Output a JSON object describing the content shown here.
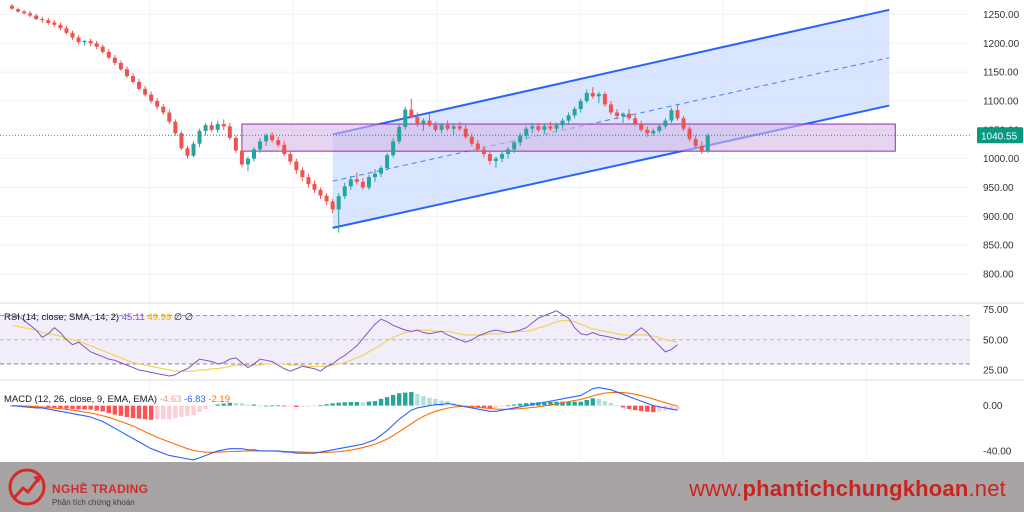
{
  "chart_data": {
    "type": "candlestick",
    "price_axis": {
      "ticks": [
        1250,
        1200,
        1150,
        1100,
        1050,
        1000,
        950,
        900,
        850,
        800
      ],
      "range": [
        755,
        1275
      ]
    },
    "last_price": {
      "value": 1040.55,
      "label": "1040.55"
    },
    "candles": [
      [
        1265,
        1268,
        1258,
        1260
      ],
      [
        1259,
        1262,
        1253,
        1255
      ],
      [
        1255,
        1258,
        1250,
        1252
      ],
      [
        1252,
        1256,
        1245,
        1248
      ],
      [
        1248,
        1251,
        1240,
        1242
      ],
      [
        1242,
        1246,
        1236,
        1240
      ],
      [
        1240,
        1244,
        1232,
        1235
      ],
      [
        1236,
        1240,
        1228,
        1232
      ],
      [
        1232,
        1236,
        1222,
        1226
      ],
      [
        1226,
        1230,
        1215,
        1218
      ],
      [
        1218,
        1222,
        1206,
        1210
      ],
      [
        1210,
        1214,
        1198,
        1202
      ],
      [
        1202,
        1206,
        1196,
        1204
      ],
      [
        1204,
        1208,
        1195,
        1200
      ],
      [
        1200,
        1204,
        1190,
        1194
      ],
      [
        1194,
        1198,
        1182,
        1185
      ],
      [
        1185,
        1190,
        1172,
        1175
      ],
      [
        1175,
        1180,
        1162,
        1166
      ],
      [
        1166,
        1170,
        1152,
        1155
      ],
      [
        1155,
        1160,
        1140,
        1143
      ],
      [
        1143,
        1148,
        1130,
        1133
      ],
      [
        1133,
        1138,
        1118,
        1121
      ],
      [
        1121,
        1126,
        1108,
        1111
      ],
      [
        1111,
        1116,
        1096,
        1100
      ],
      [
        1100,
        1105,
        1086,
        1090
      ],
      [
        1090,
        1095,
        1076,
        1080
      ],
      [
        1080,
        1085,
        1060,
        1064
      ],
      [
        1064,
        1068,
        1040,
        1044
      ],
      [
        1044,
        1048,
        1015,
        1018
      ],
      [
        1018,
        1022,
        1000,
        1005
      ],
      [
        1005,
        1030,
        1002,
        1026
      ],
      [
        1026,
        1052,
        1020,
        1048
      ],
      [
        1048,
        1062,
        1040,
        1058
      ],
      [
        1058,
        1064,
        1046,
        1050
      ],
      [
        1050,
        1066,
        1045,
        1060
      ],
      [
        1060,
        1068,
        1050,
        1056
      ],
      [
        1056,
        1062,
        1032,
        1036
      ],
      [
        1036,
        1040,
        1010,
        1014
      ],
      [
        1014,
        1018,
        985,
        990
      ],
      [
        990,
        1004,
        978,
        1000
      ],
      [
        1000,
        1020,
        995,
        1016
      ],
      [
        1016,
        1036,
        1010,
        1030
      ],
      [
        1030,
        1044,
        1022,
        1040
      ],
      [
        1040,
        1046,
        1028,
        1032
      ],
      [
        1032,
        1038,
        1020,
        1024
      ],
      [
        1024,
        1030,
        1004,
        1008
      ],
      [
        1008,
        1014,
        990,
        995
      ],
      [
        995,
        1000,
        974,
        980
      ],
      [
        980,
        985,
        962,
        968
      ],
      [
        968,
        974,
        950,
        956
      ],
      [
        956,
        962,
        940,
        946
      ],
      [
        946,
        950,
        930,
        936
      ],
      [
        936,
        940,
        920,
        926
      ],
      [
        926,
        930,
        906,
        912
      ],
      [
        912,
        940,
        872,
        935
      ],
      [
        935,
        958,
        930,
        952
      ],
      [
        952,
        970,
        946,
        964
      ],
      [
        964,
        976,
        955,
        960
      ],
      [
        960,
        966,
        946,
        950
      ],
      [
        950,
        972,
        946,
        968
      ],
      [
        968,
        982,
        960,
        974
      ],
      [
        974,
        988,
        968,
        984
      ],
      [
        984,
        1010,
        980,
        1006
      ],
      [
        1006,
        1036,
        1002,
        1030
      ],
      [
        1030,
        1060,
        1026,
        1055
      ],
      [
        1055,
        1090,
        1050,
        1085
      ],
      [
        1085,
        1104,
        1070,
        1072
      ],
      [
        1072,
        1080,
        1055,
        1060
      ],
      [
        1060,
        1070,
        1048,
        1066
      ],
      [
        1066,
        1078,
        1055,
        1058
      ],
      [
        1058,
        1064,
        1046,
        1050
      ],
      [
        1050,
        1062,
        1044,
        1058
      ],
      [
        1058,
        1066,
        1048,
        1052
      ],
      [
        1052,
        1060,
        1042,
        1056
      ],
      [
        1056,
        1064,
        1048,
        1052
      ],
      [
        1052,
        1058,
        1034,
        1038
      ],
      [
        1038,
        1044,
        1022,
        1026
      ],
      [
        1026,
        1032,
        1012,
        1016
      ],
      [
        1016,
        1022,
        1002,
        1008
      ],
      [
        1008,
        1014,
        990,
        996
      ],
      [
        996,
        1004,
        984,
        1000
      ],
      [
        1000,
        1012,
        994,
        1008
      ],
      [
        1008,
        1020,
        1000,
        1016
      ],
      [
        1016,
        1032,
        1010,
        1028
      ],
      [
        1028,
        1044,
        1022,
        1040
      ],
      [
        1040,
        1056,
        1034,
        1052
      ],
      [
        1052,
        1062,
        1044,
        1056
      ],
      [
        1056,
        1062,
        1046,
        1050
      ],
      [
        1050,
        1060,
        1044,
        1056
      ],
      [
        1056,
        1064,
        1048,
        1052
      ],
      [
        1052,
        1062,
        1046,
        1058
      ],
      [
        1058,
        1070,
        1052,
        1066
      ],
      [
        1066,
        1080,
        1060,
        1075
      ],
      [
        1075,
        1090,
        1070,
        1086
      ],
      [
        1086,
        1104,
        1080,
        1100
      ],
      [
        1100,
        1120,
        1096,
        1114
      ],
      [
        1114,
        1124,
        1104,
        1108
      ],
      [
        1108,
        1116,
        1096,
        1112
      ],
      [
        1112,
        1116,
        1090,
        1094
      ],
      [
        1094,
        1100,
        1076,
        1080
      ],
      [
        1080,
        1086,
        1068,
        1074
      ],
      [
        1074,
        1080,
        1062,
        1078
      ],
      [
        1078,
        1086,
        1066,
        1070
      ],
      [
        1070,
        1076,
        1056,
        1060
      ],
      [
        1060,
        1066,
        1046,
        1050
      ],
      [
        1050,
        1056,
        1038,
        1044
      ],
      [
        1044,
        1052,
        1040,
        1048
      ],
      [
        1048,
        1060,
        1044,
        1056
      ],
      [
        1056,
        1070,
        1052,
        1066
      ],
      [
        1066,
        1088,
        1062,
        1084
      ],
      [
        1084,
        1094,
        1066,
        1070
      ],
      [
        1070,
        1074,
        1048,
        1052
      ],
      [
        1052,
        1056,
        1030,
        1034
      ],
      [
        1034,
        1040,
        1018,
        1022
      ],
      [
        1022,
        1030,
        1008,
        1014
      ],
      [
        1014,
        1044,
        1010,
        1040
      ]
    ],
    "channel": {
      "upper": [
        [
          53,
          1042
        ],
        [
          145,
          1258
        ]
      ],
      "lower": [
        [
          53,
          880
        ],
        [
          145,
          1092
        ]
      ],
      "median": [
        [
          53,
          961
        ],
        [
          145,
          1175
        ]
      ]
    },
    "zone": {
      "from_bar": 38,
      "to_bar": 146,
      "top": 1060,
      "bottom": 1013
    },
    "rsi": {
      "label": "RSI (14, close, SMA, 14, 2)",
      "values_text": [
        "45.11",
        "49.99",
        "∅",
        "∅"
      ],
      "ticks": [
        75,
        50,
        25
      ],
      "bands": [
        70,
        30
      ],
      "range": [
        20,
        78
      ],
      "rsi": [
        68,
        70,
        66,
        62,
        58,
        52,
        55,
        60,
        56,
        50,
        46,
        48,
        44,
        40,
        38,
        36,
        34,
        33,
        31,
        29,
        27,
        25,
        24,
        23,
        22,
        21,
        20,
        21,
        24,
        26,
        30,
        34,
        33,
        32,
        30,
        31,
        34,
        35,
        31,
        27,
        30,
        34,
        33,
        32,
        29,
        26,
        24,
        26,
        28,
        27,
        26,
        24,
        28,
        30,
        34,
        37,
        41,
        45,
        51,
        57,
        63,
        67,
        65,
        62,
        60,
        58,
        57,
        58,
        56,
        55,
        56,
        57,
        54,
        52,
        50,
        48,
        50,
        53,
        55,
        57,
        58,
        57,
        56,
        57,
        58,
        60,
        64,
        68,
        70,
        72,
        74,
        71,
        68,
        60,
        55,
        54,
        56,
        54,
        53,
        52,
        51,
        50,
        52,
        56,
        60,
        56,
        50,
        45,
        40,
        42,
        46
      ],
      "sma": [
        62,
        61,
        60,
        59,
        58,
        56,
        55,
        54,
        53,
        51,
        50,
        49,
        47,
        45,
        43,
        41,
        39,
        37,
        35,
        33,
        31,
        30,
        29,
        28,
        27,
        26,
        25,
        24,
        24,
        24,
        24,
        25,
        25,
        26,
        26,
        27,
        28,
        29,
        29,
        29,
        29,
        29,
        30,
        30,
        30,
        30,
        29,
        29,
        29,
        28,
        28,
        28,
        28,
        29,
        30,
        31,
        33,
        35,
        37,
        40,
        43,
        46,
        49,
        52,
        54,
        56,
        57,
        58,
        58,
        58,
        57,
        57,
        57,
        56,
        55,
        54,
        54,
        54,
        54,
        55,
        55,
        55,
        56,
        56,
        57,
        57,
        58,
        60,
        61,
        63,
        65,
        66,
        66,
        65,
        63,
        61,
        59,
        58,
        57,
        56,
        55,
        54,
        54,
        54,
        54,
        54,
        53,
        52,
        50,
        49,
        48
      ]
    },
    "macd": {
      "label": "MACD (12, 26, close, 9, EMA, EMA)",
      "values_text": [
        "-4.63",
        "-6.83",
        "-2.19"
      ],
      "ticks": [
        0,
        -40
      ],
      "range": [
        -48,
        20
      ],
      "macd": [
        0,
        -0.5,
        -1,
        -1.5,
        -2,
        -2,
        -3,
        -4,
        -5,
        -6,
        -7,
        -8,
        -9,
        -10,
        -12,
        -14,
        -17,
        -20,
        -23,
        -26,
        -29,
        -32,
        -35,
        -38,
        -40,
        -42,
        -44,
        -45,
        -46,
        -47,
        -48,
        -46,
        -44,
        -42,
        -40,
        -39,
        -38,
        -38,
        -38,
        -39,
        -39,
        -40,
        -40,
        -40,
        -40,
        -41,
        -41,
        -42,
        -42,
        -42,
        -42,
        -41,
        -40,
        -39,
        -38,
        -37,
        -36,
        -35,
        -34,
        -32,
        -30,
        -26,
        -22,
        -17,
        -12,
        -8,
        -4,
        -2,
        -1,
        0,
        1,
        1,
        2,
        1,
        0,
        -1,
        -2,
        -3,
        -4,
        -5,
        -5,
        -4,
        -3,
        -2,
        -1,
        0,
        1,
        2,
        3,
        4,
        5,
        6,
        7,
        8,
        9,
        12,
        15,
        16,
        15,
        14,
        12,
        10,
        8,
        6,
        4,
        2,
        0,
        -1,
        -2,
        -3,
        -4
      ],
      "signal": [
        0,
        -0.2,
        -0.4,
        -0.7,
        -1,
        -1.3,
        -1.7,
        -2.2,
        -2.7,
        -3.3,
        -4,
        -4.8,
        -5.6,
        -6.5,
        -7.6,
        -8.9,
        -10.4,
        -12.1,
        -14,
        -16,
        -18,
        -20.5,
        -23,
        -25.5,
        -28,
        -30,
        -32,
        -34,
        -36,
        -38,
        -39.5,
        -40.5,
        -41,
        -41.2,
        -41,
        -40.8,
        -40.6,
        -40.4,
        -40.2,
        -40,
        -40,
        -40,
        -40,
        -40.1,
        -40.2,
        -40.4,
        -40.6,
        -40.8,
        -41,
        -41.2,
        -41.3,
        -41.3,
        -41.2,
        -41,
        -40.6,
        -40,
        -39.2,
        -38.2,
        -37,
        -35.6,
        -34,
        -32,
        -29.5,
        -26.5,
        -23,
        -19.5,
        -16,
        -12.5,
        -9.5,
        -7,
        -5,
        -3.5,
        -2.2,
        -1.2,
        -0.8,
        -0.8,
        -1,
        -1.5,
        -2,
        -2.5,
        -3,
        -3.2,
        -3.2,
        -3,
        -2.7,
        -2.2,
        -1.6,
        -1,
        -0.2,
        0.6,
        1.5,
        2.5,
        3.5,
        4.5,
        5.5,
        7,
        8.5,
        10,
        11,
        11.6,
        11.8,
        11.6,
        11,
        10,
        8.8,
        7.4,
        5.8,
        4.2,
        2.6,
        1,
        -0.4
      ]
    }
  },
  "watermark": {
    "brand": "NGHỀ TRADING",
    "tagline": "Phân tích chứng khoán",
    "site_prefix": "www.",
    "site_main": "phantichchungkhoan",
    "site_suffix": ".net"
  },
  "colors": {
    "up": "#26a69a",
    "down": "#ef5350",
    "channel_line": "#2962ff",
    "channel_fill": "#cddcff",
    "zone_fill": "#d6b7e8",
    "zone_border": "#9c27b0",
    "rsi_line": "#7e57c2",
    "rsi_sma": "#f5d25b",
    "macd_line": "#2962ff",
    "signal_line": "#ff6d00",
    "last_price": "#089981"
  }
}
